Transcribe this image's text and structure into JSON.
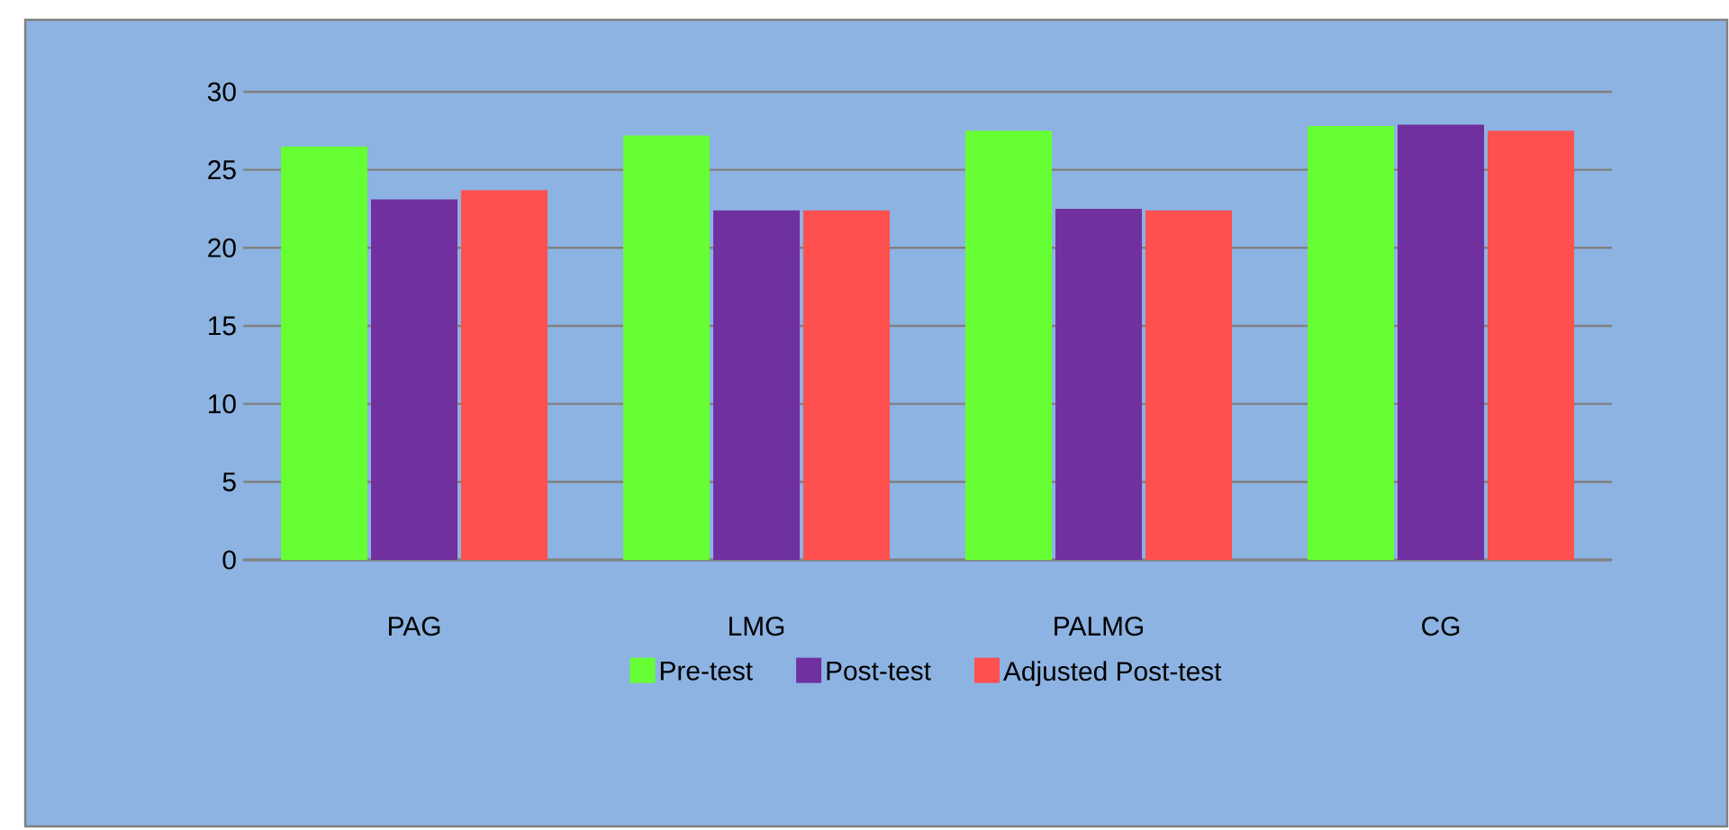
{
  "chart_data": {
    "type": "bar",
    "categories": [
      "PAG",
      "LMG",
      "PALMG",
      "CG"
    ],
    "series": [
      {
        "name": "Pre-test",
        "color": "#66ff33",
        "values": [
          26.5,
          27.2,
          27.5,
          27.8
        ]
      },
      {
        "name": "Post-test",
        "color": "#7030a0",
        "values": [
          23.1,
          22.4,
          22.5,
          27.9
        ]
      },
      {
        "name": "Adjusted Post-test",
        "color": "#ff5050",
        "values": [
          23.7,
          22.4,
          22.4,
          27.5
        ]
      }
    ],
    "ylim": [
      0,
      30
    ],
    "yticks": [
      0,
      5,
      10,
      15,
      20,
      25,
      30
    ],
    "grid": "y",
    "legend": "bottom"
  }
}
